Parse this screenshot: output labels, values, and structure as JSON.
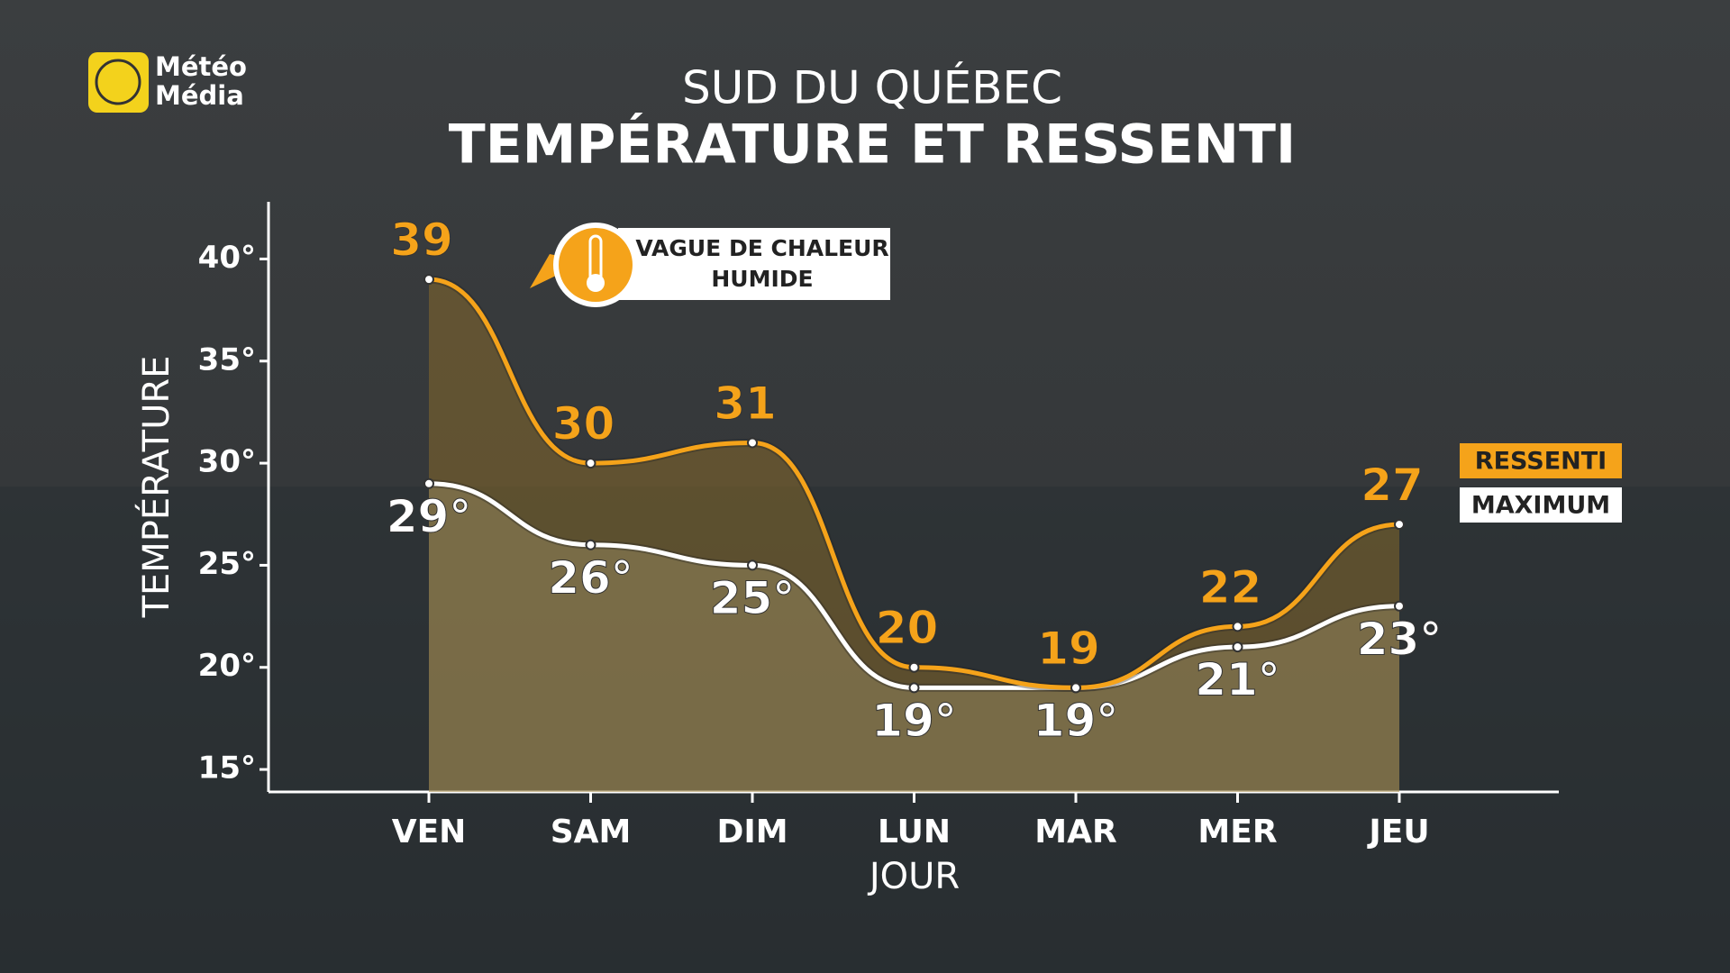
{
  "logo": {
    "line1": "Météo",
    "line2": "Média"
  },
  "chart_data": {
    "type": "line",
    "title": "SUD DU QUÉBEC",
    "subtitle": "TEMPÉRATURE ET RESSENTI",
    "x_label": "JOUR",
    "y_label": "TEMPÉRATURE",
    "annotation": {
      "line1": "VAGUE DE CHALEUR",
      "line2": "HUMIDE"
    },
    "categories": [
      "VEN",
      "SAM",
      "DIM",
      "LUN",
      "MAR",
      "MER",
      "JEU"
    ],
    "series": [
      {
        "name": "RESSENTI",
        "color": "#f5a31a",
        "values": [
          39,
          30,
          31,
          20,
          19,
          22,
          27
        ]
      },
      {
        "name": "MAXIMUM",
        "color": "#ffffff",
        "values": [
          29,
          26,
          25,
          19,
          19,
          21,
          23
        ],
        "value_labels": [
          "29°",
          "26°",
          "25°",
          "19°",
          "19°",
          "21°",
          "23°"
        ]
      }
    ],
    "ylim": [
      13.9,
      42.8
    ],
    "yticks": [
      {
        "value": 15,
        "label": "15°"
      },
      {
        "value": 20,
        "label": "20°"
      },
      {
        "value": 25,
        "label": "25°"
      },
      {
        "value": 30,
        "label": "30°"
      },
      {
        "value": 35,
        "label": "35°"
      },
      {
        "value": 40,
        "label": "40°"
      }
    ],
    "legend": "right"
  }
}
